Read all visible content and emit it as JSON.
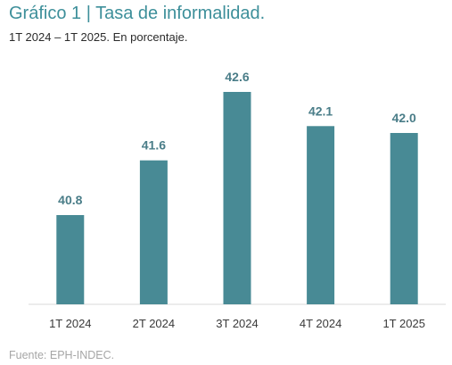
{
  "title": "Gráfico 1 | Tasa de informalidad.",
  "subtitle": "1T 2024 – 1T 2025. En porcentaje.",
  "source": "Fuente: EPH-INDEC.",
  "colors": {
    "bar": "#488a95",
    "label": "#4a7d88",
    "title": "#3d8f9a",
    "tick": "#3a3a3a",
    "axis": "#d9d9d9"
  },
  "chart_data": {
    "type": "bar",
    "title": "Gráfico 1 | Tasa de informalidad.",
    "subtitle": "1T 2024 – 1T 2025. En porcentaje.",
    "xlabel": "",
    "ylabel": "",
    "categories": [
      "1T 2024",
      "2T 2024",
      "3T 2024",
      "4T 2024",
      "1T 2025"
    ],
    "values": [
      40.8,
      41.6,
      42.6,
      42.1,
      42.0
    ],
    "value_labels": [
      "40.8",
      "41.6",
      "42.6",
      "42.1",
      "42.0"
    ],
    "grid": false,
    "legend": "none"
  }
}
